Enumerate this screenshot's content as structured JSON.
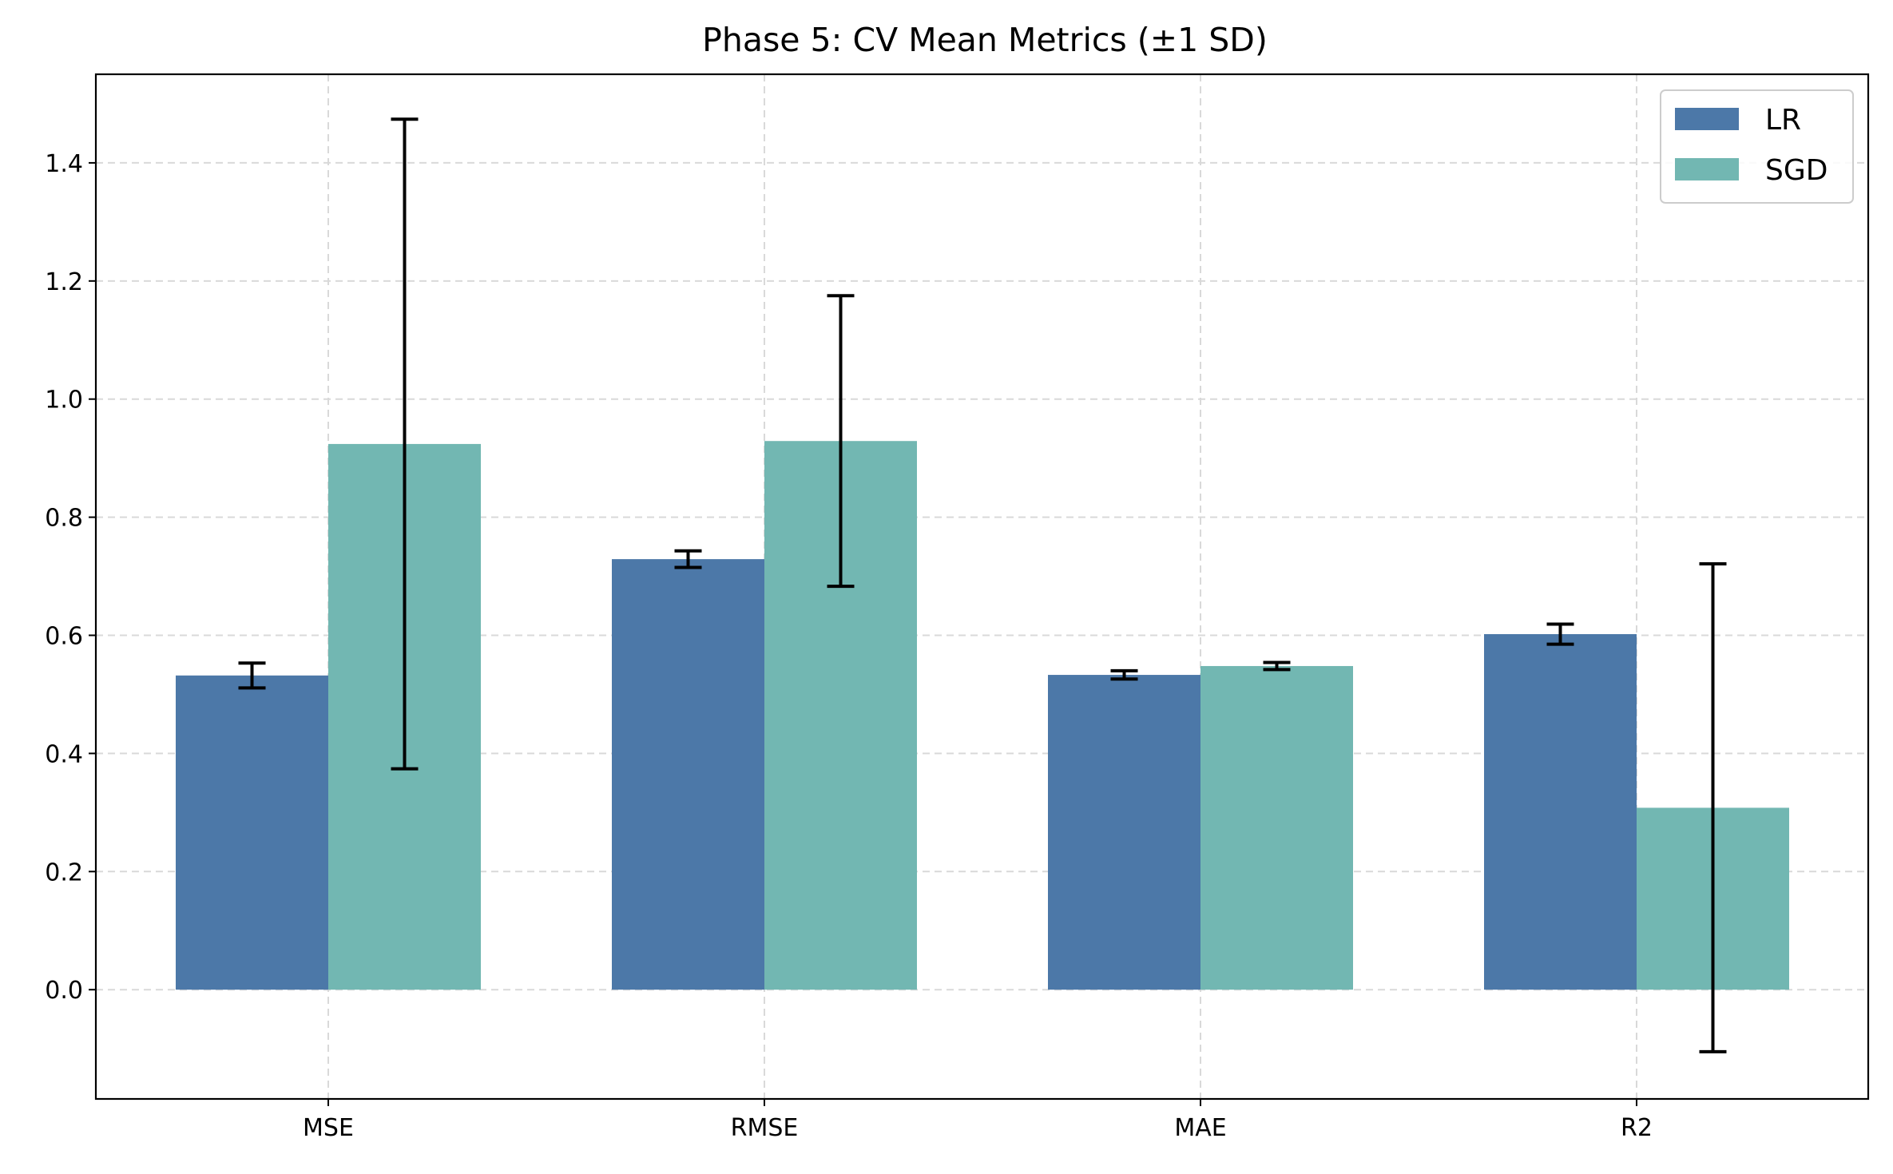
{
  "chart_data": {
    "type": "bar",
    "title": "Phase 5: CV Mean Metrics (±1 SD)",
    "xlabel": "",
    "ylabel": "",
    "categories": [
      "MSE",
      "RMSE",
      "MAE",
      "R2"
    ],
    "series": [
      {
        "name": "LR",
        "color": "#4c78a8",
        "values": [
          0.532,
          0.729,
          0.533,
          0.602
        ],
        "errors": [
          0.021,
          0.014,
          0.007,
          0.017
        ]
      },
      {
        "name": "SGD",
        "color": "#72b7b2",
        "values": [
          0.924,
          0.929,
          0.548,
          0.308
        ],
        "errors": [
          0.55,
          0.246,
          0.006,
          0.413
        ]
      }
    ],
    "ylim": [
      -0.185,
      1.55
    ],
    "yticks": [
      "0.0",
      "0.2",
      "0.4",
      "0.6",
      "0.8",
      "1.0",
      "1.2",
      "1.4"
    ],
    "grid": true,
    "legend_position": "top-right"
  }
}
